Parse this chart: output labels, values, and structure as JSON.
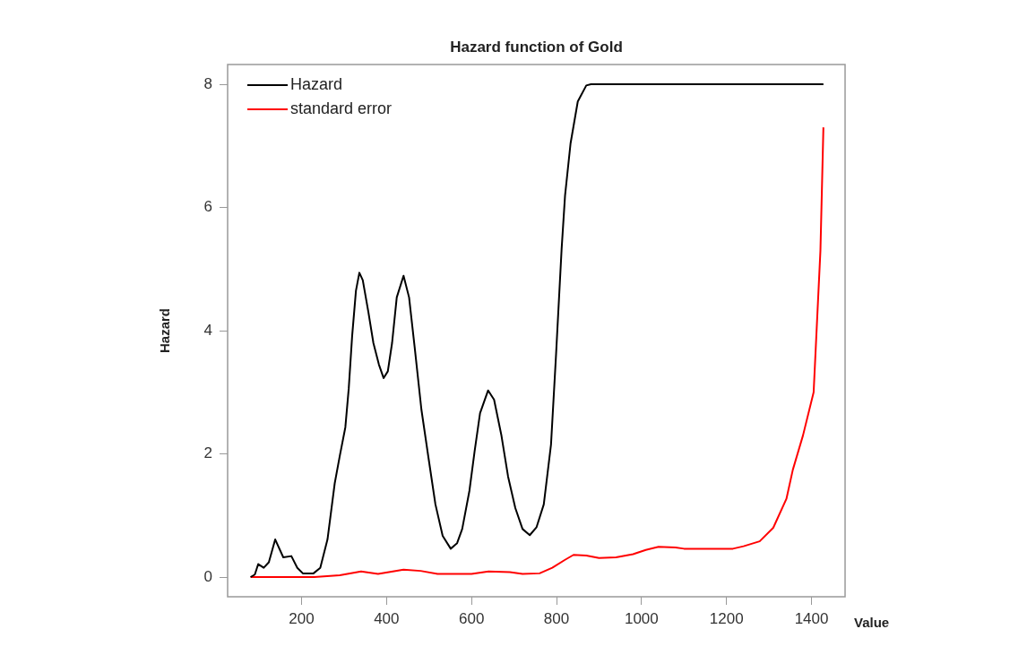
{
  "chart_data": {
    "type": "line",
    "title": "Hazard function of Gold",
    "xlabel": "Value",
    "ylabel": "Hazard",
    "xlim": [
      26,
      1479
    ],
    "xticks": [
      200,
      400,
      600,
      800,
      1000,
      1200,
      1400
    ],
    "ylim": [
      -0.32,
      8.32
    ],
    "yticks": [
      0,
      2,
      4,
      6,
      8
    ],
    "grid": false,
    "legend": "top left",
    "marker": "none",
    "line_style": "solid",
    "series": [
      {
        "name": "Hazard",
        "color": "#000000",
        "x": [
          80,
          90,
          98,
          111,
          123,
          138,
          157,
          176,
          190,
          203,
          228,
          244,
          261,
          278,
          290,
          303,
          311,
          319,
          328,
          336,
          344,
          357,
          369,
          382,
          393,
          403,
          413,
          424,
          440,
          453,
          466,
          482,
          499,
          515,
          532,
          551,
          566,
          578,
          595,
          607,
          620,
          639,
          653,
          670,
          686,
          703,
          720,
          737,
          753,
          770,
          787,
          799,
          812,
          820,
          833,
          850,
          870,
          881,
          1428
        ],
        "values": [
          0,
          0.04,
          0.21,
          0.15,
          0.24,
          0.61,
          0.32,
          0.34,
          0.15,
          0.06,
          0.06,
          0.15,
          0.61,
          1.52,
          1.97,
          2.43,
          3.06,
          3.91,
          4.65,
          4.94,
          4.82,
          4.31,
          3.8,
          3.45,
          3.23,
          3.34,
          3.8,
          4.54,
          4.89,
          4.54,
          3.74,
          2.72,
          1.92,
          1.18,
          0.67,
          0.46,
          0.55,
          0.78,
          1.4,
          2.03,
          2.66,
          3.03,
          2.88,
          2.31,
          1.63,
          1.12,
          0.78,
          0.68,
          0.81,
          1.18,
          2.15,
          3.63,
          5.33,
          6.19,
          7.04,
          7.72,
          7.98,
          8,
          8
        ]
      },
      {
        "name": "standard error",
        "color": "#ff0000",
        "x": [
          80,
          200,
          230,
          290,
          340,
          380,
          440,
          480,
          520,
          600,
          640,
          690,
          720,
          760,
          790,
          820,
          840,
          870,
          900,
          940,
          980,
          1010,
          1040,
          1080,
          1100,
          1215,
          1240,
          1278,
          1310,
          1341,
          1356,
          1380,
          1405,
          1421,
          1428
        ],
        "values": [
          0,
          0,
          0,
          0.03,
          0.09,
          0.05,
          0.12,
          0.1,
          0.05,
          0.05,
          0.09,
          0.08,
          0.05,
          0.06,
          0.15,
          0.28,
          0.36,
          0.35,
          0.31,
          0.32,
          0.37,
          0.44,
          0.49,
          0.48,
          0.46,
          0.46,
          0.5,
          0.58,
          0.8,
          1.27,
          1.74,
          2.3,
          3,
          5.3,
          7.3
        ]
      }
    ]
  }
}
